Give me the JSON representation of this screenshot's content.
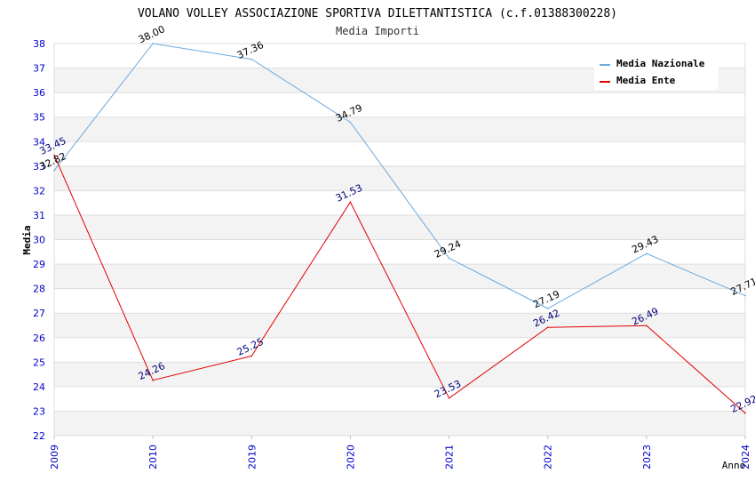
{
  "chart_data": {
    "type": "line",
    "title": "VOLANO VOLLEY ASSOCIAZIONE SPORTIVA DILETTANTISTICA (c.f.01388300228)",
    "subtitle": "Media Importi",
    "xlabel": "Anno",
    "ylabel": "Media",
    "categories": [
      "2009",
      "2010",
      "2019",
      "2020",
      "2021",
      "2022",
      "2023",
      "2024"
    ],
    "ylim": [
      22,
      38
    ],
    "yticks": [
      22,
      23,
      24,
      25,
      26,
      27,
      28,
      29,
      30,
      31,
      32,
      33,
      34,
      35,
      36,
      37,
      38
    ],
    "grid": true,
    "legend_position": "top-right",
    "series": [
      {
        "name": "Media Nazionale",
        "color": "#6aa8e0",
        "label_color": "#000000",
        "values": [
          32.82,
          38.0,
          37.36,
          34.79,
          29.24,
          27.19,
          29.43,
          27.71
        ],
        "labels": [
          "32.82",
          "38.00",
          "37.36",
          "34.79",
          "29.24",
          "27.19",
          "29.43",
          "27.71"
        ]
      },
      {
        "name": "Media Ente",
        "color": "#e00000",
        "label_color": "#00007a",
        "values": [
          33.45,
          24.26,
          25.25,
          31.53,
          23.53,
          26.42,
          26.49,
          22.92
        ],
        "labels": [
          "33.45",
          "24.26",
          "25.25",
          "31.53",
          "23.53",
          "26.42",
          "26.49",
          "22.92"
        ]
      }
    ]
  }
}
